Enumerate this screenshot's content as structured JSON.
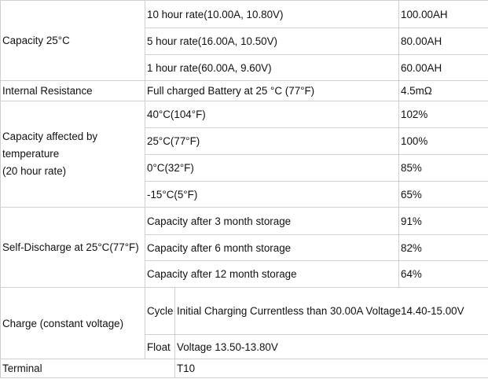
{
  "table": {
    "capacity": {
      "label": "Capacity 25°C",
      "rows": [
        {
          "condition": "10 hour rate(10.00A, 10.80V)",
          "value": "100.00AH"
        },
        {
          "condition": "5 hour rate(16.00A, 10.50V)",
          "value": "80.00AH"
        },
        {
          "condition": "1 hour rate(60.00A, 9.60V)",
          "value": "60.00AH"
        }
      ]
    },
    "internal_resistance": {
      "label": "Internal Resistance",
      "condition": "Full charged Battery at 25 °C (77°F)",
      "value": "4.5mΩ"
    },
    "temperature": {
      "label_line1": "Capacity affected by temperature",
      "label_line2": "(20 hour rate)",
      "rows": [
        {
          "condition": "40°C(104°F)",
          "value": "102%"
        },
        {
          "condition": "25°C(77°F)",
          "value": "100%"
        },
        {
          "condition": "0°C(32°F)",
          "value": "85%"
        },
        {
          "condition": "-15°C(5°F)",
          "value": "65%"
        }
      ]
    },
    "self_discharge": {
      "label": "Self-Discharge at 25°C(77°F)",
      "rows": [
        {
          "condition": "Capacity after 3 month storage",
          "value": "91%"
        },
        {
          "condition": "Capacity after 6 month storage",
          "value": "82%"
        },
        {
          "condition": "Capacity after 12 month storage",
          "value": "64%"
        }
      ]
    },
    "charge": {
      "label": "Charge (constant voltage)",
      "cycle_label": "Cycle",
      "cycle_text": "Initial Charging Currentless than 30.00A   Voltage14.40-15.00V",
      "float_label": "Float",
      "float_text": "Voltage 13.50-13.80V"
    },
    "terminal": {
      "label": "Terminal",
      "value": "T10"
    }
  }
}
